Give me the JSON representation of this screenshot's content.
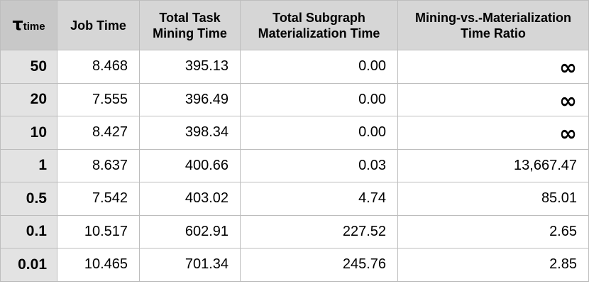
{
  "table": {
    "header": {
      "tau_symbol": "τ",
      "tau_subscript": "time",
      "columns": [
        "Job Time",
        "Total Task\nMining Time",
        "Total Subgraph\nMaterialization Time",
        "Mining-vs.-Materialization\nTime Ratio"
      ]
    },
    "rows": [
      {
        "tau": "50",
        "job_time": "8.468",
        "mining_time": "395.13",
        "materialization_time": "0.00",
        "ratio": "∞"
      },
      {
        "tau": "20",
        "job_time": "7.555",
        "mining_time": "396.49",
        "materialization_time": "0.00",
        "ratio": "∞"
      },
      {
        "tau": "10",
        "job_time": "8.427",
        "mining_time": "398.34",
        "materialization_time": "0.00",
        "ratio": "∞"
      },
      {
        "tau": "1",
        "job_time": "8.637",
        "mining_time": "400.66",
        "materialization_time": "0.03",
        "ratio": "13,667.47"
      },
      {
        "tau": "0.5",
        "job_time": "7.542",
        "mining_time": "403.02",
        "materialization_time": "4.74",
        "ratio": "85.01"
      },
      {
        "tau": "0.1",
        "job_time": "10.517",
        "mining_time": "602.91",
        "materialization_time": "227.52",
        "ratio": "2.65"
      },
      {
        "tau": "0.01",
        "job_time": "10.465",
        "mining_time": "701.34",
        "materialization_time": "245.76",
        "ratio": "2.85"
      }
    ]
  },
  "colors": {
    "header_bg": "#d6d6d6",
    "row_header_bg": "#e3e3e3",
    "grid": "#bdbdbd"
  }
}
